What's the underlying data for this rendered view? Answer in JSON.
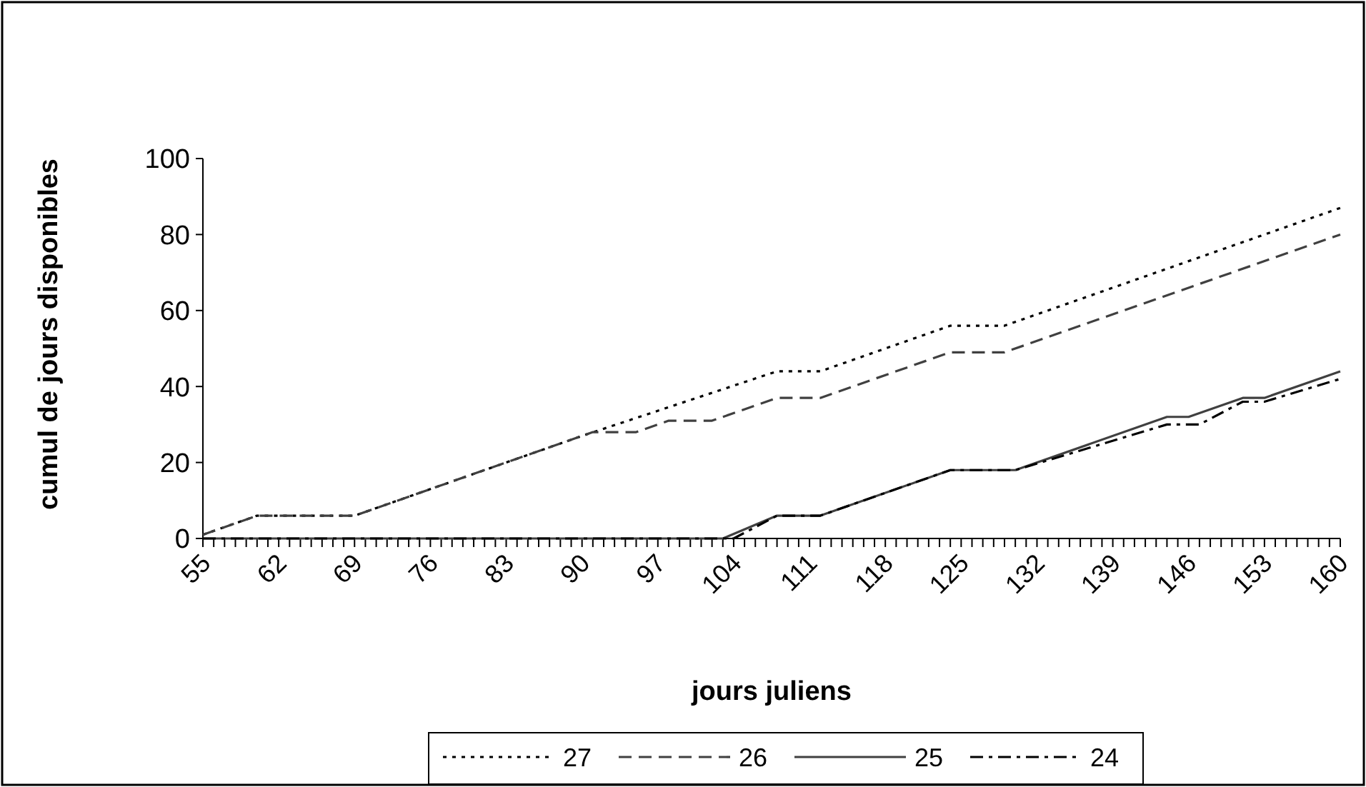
{
  "chart_data": {
    "type": "line",
    "xlabel": "jours juliens",
    "ylabel": "cumul de jours disponibles",
    "xlim": [
      55,
      160
    ],
    "ylim": [
      0,
      100
    ],
    "yticks": [
      0,
      20,
      40,
      60,
      80,
      100
    ],
    "xticks": [
      55,
      {
        "value": 56,
        "label": null
      },
      {
        "value": 57,
        "label": null
      },
      {
        "value": 58,
        "label": null
      },
      {
        "value": 59,
        "label": null
      },
      {
        "value": 60,
        "label": null
      },
      {
        "value": 61,
        "label": null
      },
      62,
      {
        "value": 63,
        "label": null
      },
      {
        "value": 64,
        "label": null
      },
      {
        "value": 65,
        "label": null
      },
      {
        "value": 66,
        "label": null
      },
      {
        "value": 67,
        "label": null
      },
      {
        "value": 68,
        "label": null
      },
      69,
      {
        "value": 70,
        "label": null
      },
      {
        "value": 71,
        "label": null
      },
      {
        "value": 72,
        "label": null
      },
      {
        "value": 73,
        "label": null
      },
      {
        "value": 74,
        "label": null
      },
      {
        "value": 75,
        "label": null
      },
      76,
      {
        "value": 77,
        "label": null
      },
      {
        "value": 78,
        "label": null
      },
      {
        "value": 79,
        "label": null
      },
      {
        "value": 80,
        "label": null
      },
      {
        "value": 81,
        "label": null
      },
      {
        "value": 82,
        "label": null
      },
      83,
      {
        "value": 84,
        "label": null
      },
      {
        "value": 85,
        "label": null
      },
      {
        "value": 86,
        "label": null
      },
      {
        "value": 87,
        "label": null
      },
      {
        "value": 88,
        "label": null
      },
      {
        "value": 89,
        "label": null
      },
      90,
      {
        "value": 91,
        "label": null
      },
      {
        "value": 92,
        "label": null
      },
      {
        "value": 93,
        "label": null
      },
      {
        "value": 94,
        "label": null
      },
      {
        "value": 95,
        "label": null
      },
      {
        "value": 96,
        "label": null
      },
      97,
      {
        "value": 98,
        "label": null
      },
      {
        "value": 99,
        "label": null
      },
      {
        "value": 100,
        "label": null
      },
      {
        "value": 101,
        "label": null
      },
      {
        "value": 102,
        "label": null
      },
      {
        "value": 103,
        "label": null
      },
      104,
      {
        "value": 105,
        "label": null
      },
      {
        "value": 106,
        "label": null
      },
      {
        "value": 107,
        "label": null
      },
      {
        "value": 108,
        "label": null
      },
      {
        "value": 109,
        "label": null
      },
      {
        "value": 110,
        "label": null
      },
      111,
      {
        "value": 112,
        "label": null
      },
      {
        "value": 113,
        "label": null
      },
      {
        "value": 114,
        "label": null
      },
      {
        "value": 115,
        "label": null
      },
      {
        "value": 116,
        "label": null
      },
      {
        "value": 117,
        "label": null
      },
      118,
      {
        "value": 119,
        "label": null
      },
      {
        "value": 120,
        "label": null
      },
      {
        "value": 121,
        "label": null
      },
      {
        "value": 122,
        "label": null
      },
      {
        "value": 123,
        "label": null
      },
      {
        "value": 124,
        "label": null
      },
      125,
      {
        "value": 126,
        "label": null
      },
      {
        "value": 127,
        "label": null
      },
      {
        "value": 128,
        "label": null
      },
      {
        "value": 129,
        "label": null
      },
      {
        "value": 130,
        "label": null
      },
      {
        "value": 131,
        "label": null
      },
      132,
      {
        "value": 133,
        "label": null
      },
      {
        "value": 134,
        "label": null
      },
      {
        "value": 135,
        "label": null
      },
      {
        "value": 136,
        "label": null
      },
      {
        "value": 137,
        "label": null
      },
      {
        "value": 138,
        "label": null
      },
      139,
      {
        "value": 140,
        "label": null
      },
      {
        "value": 141,
        "label": null
      },
      {
        "value": 142,
        "label": null
      },
      {
        "value": 143,
        "label": null
      },
      {
        "value": 144,
        "label": null
      },
      {
        "value": 145,
        "label": null
      },
      146,
      {
        "value": 147,
        "label": null
      },
      {
        "value": 148,
        "label": null
      },
      {
        "value": 149,
        "label": null
      },
      {
        "value": 150,
        "label": null
      },
      {
        "value": 151,
        "label": null
      },
      {
        "value": 152,
        "label": null
      },
      153,
      {
        "value": 154,
        "label": null
      },
      {
        "value": 155,
        "label": null
      },
      {
        "value": 156,
        "label": null
      },
      {
        "value": 157,
        "label": null
      },
      {
        "value": 158,
        "label": null
      },
      {
        "value": 159,
        "label": null
      },
      160
    ],
    "grid": false,
    "legend": "bottom",
    "series": [
      {
        "name": "27",
        "color": "#000000",
        "line_style": "dotted",
        "x": [
          55,
          60,
          69,
          90,
          108,
          112,
          124,
          129,
          160
        ],
        "values": [
          1,
          6,
          6,
          27,
          44,
          44,
          56,
          56,
          87
        ]
      },
      {
        "name": "26",
        "color": "#404040",
        "line_style": "dashed",
        "x": [
          55,
          60,
          69,
          90,
          91,
          95,
          98,
          102,
          108,
          112,
          124,
          129,
          160
        ],
        "values": [
          1,
          6,
          6,
          27,
          28,
          28,
          31,
          31,
          37,
          37,
          49,
          49,
          80
        ]
      },
      {
        "name": "25",
        "color": "#404040",
        "line_style": "solid",
        "x": [
          55,
          103,
          108,
          112,
          124,
          130,
          144,
          146,
          151,
          153,
          160
        ],
        "values": [
          0,
          0,
          6,
          6,
          18,
          18,
          32,
          32,
          37,
          37,
          44
        ]
      },
      {
        "name": "24",
        "color": "#000000",
        "line_style": "dashdot",
        "x": [
          55,
          104,
          108,
          112,
          124,
          130,
          144,
          147,
          151,
          153,
          160
        ],
        "values": [
          0,
          0,
          6,
          6,
          18,
          18,
          30,
          30,
          36,
          36,
          42
        ]
      }
    ]
  }
}
